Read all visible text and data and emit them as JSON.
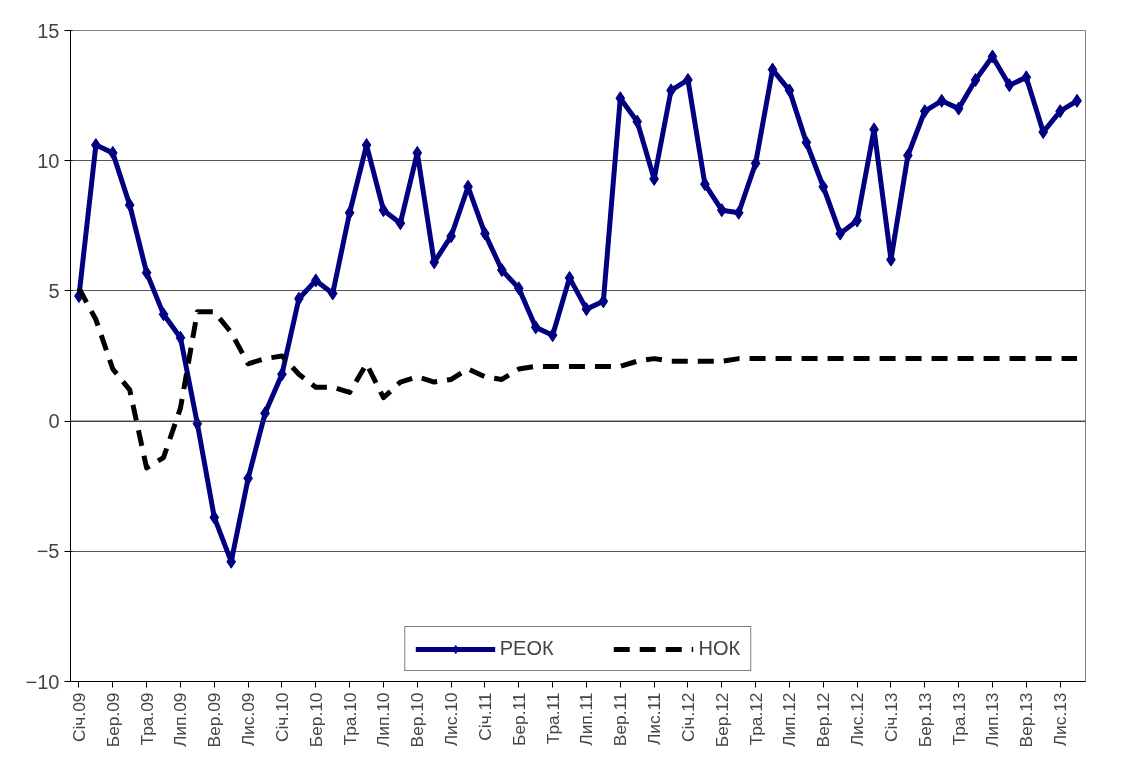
{
  "chart_data": {
    "type": "line",
    "categories": [
      "Січ.09",
      null,
      "Бер.09",
      null,
      "Тра.09",
      null,
      "Лип.09",
      null,
      "Вер.09",
      null,
      "Лис.09",
      null,
      "Січ.10",
      null,
      "Бер.10",
      null,
      "Тра.10",
      null,
      "Лип.10",
      null,
      "Вер.10",
      null,
      "Лис.10",
      null,
      "Січ.11",
      null,
      "Бер.11",
      null,
      "Тра.11",
      null,
      "Лип.11",
      null,
      "Вер.11",
      null,
      "Лис.11",
      null,
      "Січ.12",
      null,
      "Бер.12",
      null,
      "Тра.12",
      null,
      "Лип.12",
      null,
      "Вер.12",
      null,
      "Лис.12",
      null,
      "Січ.13",
      null,
      "Бер.13",
      null,
      "Тра.13",
      null,
      "Лип.13",
      null,
      "Вер.13",
      null,
      "Лис.13",
      null
    ],
    "series": [
      {
        "name": "РЕОК",
        "color": "#000080",
        "marker": "diamond",
        "line_style": "solid",
        "values": [
          4.8,
          10.6,
          10.3,
          8.3,
          5.7,
          4.1,
          3.2,
          -0.1,
          -3.7,
          -5.4,
          -2.2,
          0.3,
          1.8,
          4.7,
          5.4,
          4.9,
          8.0,
          10.6,
          8.1,
          7.6,
          10.3,
          6.1,
          7.1,
          9.0,
          7.2,
          5.8,
          5.1,
          3.6,
          3.3,
          5.5,
          4.3,
          4.6,
          12.4,
          11.5,
          9.3,
          12.7,
          13.1,
          9.1,
          8.1,
          8.0,
          9.9,
          13.5,
          12.7,
          10.7,
          9.0,
          7.2,
          7.7,
          11.2,
          6.2,
          10.2,
          11.9,
          12.3,
          12.0,
          13.1,
          14.0,
          12.9,
          13.2,
          11.1,
          11.9,
          12.3
        ]
      },
      {
        "name": "НОК",
        "color": "#000000",
        "marker": "none",
        "line_style": "dashed",
        "values": [
          5.1,
          3.9,
          2.0,
          1.2,
          -1.8,
          -1.4,
          0.5,
          4.2,
          4.2,
          3.4,
          2.2,
          2.4,
          2.5,
          1.8,
          1.3,
          1.3,
          1.1,
          2.2,
          0.9,
          1.5,
          1.7,
          1.5,
          1.6,
          2.0,
          1.7,
          1.6,
          2.0,
          2.1,
          2.1,
          2.1,
          2.1,
          2.1,
          2.1,
          2.3,
          2.4,
          2.3,
          2.3,
          2.3,
          2.3,
          2.4,
          2.4,
          2.4,
          2.4,
          2.4,
          2.4,
          2.4,
          2.4,
          2.4,
          2.4,
          2.4,
          2.4,
          2.4,
          2.4,
          2.4,
          2.4,
          2.4,
          2.4,
          2.4,
          2.4,
          2.4
        ]
      }
    ],
    "ylim": [
      -10,
      15
    ],
    "yticks": [
      -10,
      -5,
      0,
      5,
      10,
      15
    ],
    "grid": "y",
    "legend": "bottom"
  }
}
